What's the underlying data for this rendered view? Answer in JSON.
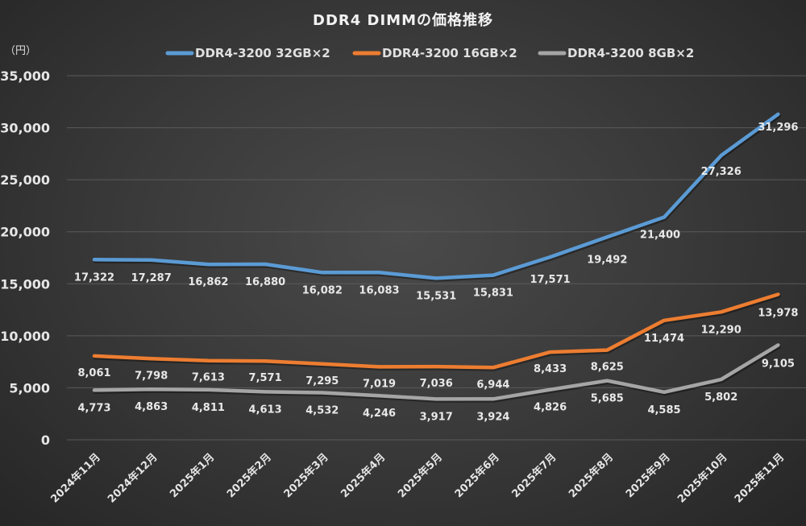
{
  "chart_data": {
    "type": "line",
    "title": "DDR4 DIMMの価格推移",
    "ylabel": "（円）",
    "xlabel": "",
    "ylim": [
      0,
      35000
    ],
    "yticks": [
      0,
      5000,
      10000,
      15000,
      20000,
      25000,
      30000,
      35000
    ],
    "ytick_labels": [
      "0",
      "5,000",
      "10,000",
      "15,000",
      "20,000",
      "25,000",
      "30,000",
      "35,000"
    ],
    "grid": true,
    "legend_position": "top",
    "categories": [
      "2024年11月",
      "2024年12月",
      "2025年1月",
      "2025年2月",
      "2025年3月",
      "2025年4月",
      "2025年5月",
      "2025年6月",
      "2025年7月",
      "2025年8月",
      "2025年9月",
      "2025年10月",
      "2025年11月"
    ],
    "series": [
      {
        "name": "DDR4-3200 32GB×2",
        "color": "#5b9bd5",
        "values": [
          17322,
          17287,
          16862,
          16880,
          16082,
          16083,
          15531,
          15831,
          17571,
          19492,
          21400,
          27326,
          31296
        ],
        "labels": [
          "17,322",
          "17,287",
          "16,862",
          "16,880",
          "16,082",
          "16,083",
          "15,531",
          "15,831",
          "17,571",
          "19,492",
          "21,400",
          "27,326",
          "31,296"
        ]
      },
      {
        "name": "DDR4-3200 16GB×2",
        "color": "#ed7d31",
        "values": [
          8061,
          7798,
          7613,
          7571,
          7295,
          7019,
          7036,
          6944,
          8433,
          8625,
          11474,
          12290,
          13978
        ],
        "labels": [
          "8,061",
          "7,798",
          "7,613",
          "7,571",
          "7,295",
          "7,019",
          "7,036",
          "6,944",
          "8,433",
          "8,625",
          "11,474",
          "12,290",
          "13,978"
        ]
      },
      {
        "name": "DDR4-3200 8GB×2",
        "color": "#a5a5a5",
        "values": [
          4773,
          4863,
          4811,
          4613,
          4532,
          4246,
          3917,
          3924,
          4826,
          5685,
          4585,
          5802,
          9105
        ],
        "labels": [
          "4,773",
          "4,863",
          "4,811",
          "4,613",
          "4,532",
          "4,246",
          "3,917",
          "3,924",
          "4,826",
          "5,685",
          "4,585",
          "5,802",
          "9,105"
        ]
      }
    ]
  }
}
